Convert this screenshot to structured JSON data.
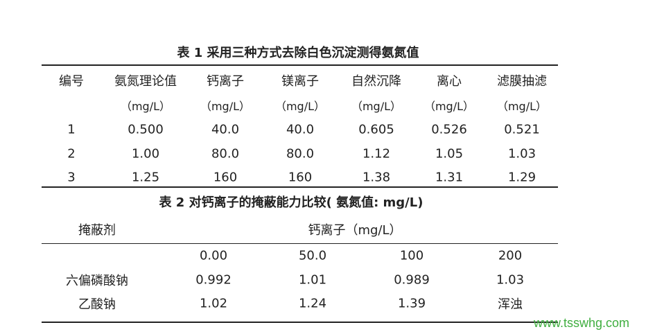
{
  "table1": {
    "title": "表 1 采用三种方式去除白色沉淀测得氨氮值",
    "header": [
      {
        "name": "编号"
      },
      {
        "name": "氨氮理论值",
        "unit": "（mg/L）"
      },
      {
        "name": "钙离子",
        "unit": "（mg/L）"
      },
      {
        "name": "镁离子",
        "unit": "（mg/L）"
      },
      {
        "name": "自然沉降",
        "unit": "（mg/L）"
      },
      {
        "name": "离心",
        "unit": "（mg/L）"
      },
      {
        "name": "滤膜抽滤",
        "unit": "（mg/L）"
      }
    ],
    "rows": [
      [
        "1",
        "0.500",
        "40.0",
        "40.0",
        "0.605",
        "0.526",
        "0.521"
      ],
      [
        "2",
        "1.00",
        "80.0",
        "80.0",
        "1.12",
        "1.05",
        "1.03"
      ],
      [
        "3",
        "1.25",
        "160",
        "160",
        "1.38",
        "1.31",
        "1.29"
      ]
    ]
  },
  "table2": {
    "title": "表 2 对钙离子的掩蔽能力比较( 氨氮值: mg/L)",
    "header": {
      "label": "掩蔽剂",
      "group": "钙离子（mg/L）"
    },
    "concentrations": [
      "0.00",
      "50.0",
      "100",
      "200"
    ],
    "rows": [
      [
        "六偏磷酸钠",
        "0.992",
        "1.01",
        "0.989",
        "1.03"
      ],
      [
        "乙酸钠",
        "1.02",
        "1.24",
        "1.39",
        "浑浊"
      ]
    ]
  },
  "watermark": "www.tsswhg.com"
}
